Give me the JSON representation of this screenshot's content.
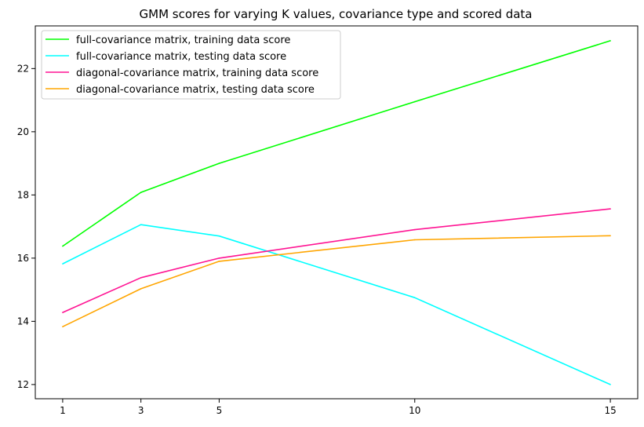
{
  "chart_data": {
    "type": "line",
    "title": "GMM scores for varying K values, covariance type and scored data",
    "xlabel": "",
    "ylabel": "",
    "x": [
      1,
      3,
      5,
      10,
      15
    ],
    "xticks": [
      1,
      3,
      5,
      10,
      15
    ],
    "yticks": [
      12,
      14,
      16,
      18,
      20,
      22
    ],
    "xlim": [
      0.3,
      15.7
    ],
    "ylim": [
      11.55,
      23.35
    ],
    "grid": false,
    "legend_position": "top-left",
    "series": [
      {
        "name": "full-covariance matrix, training data score",
        "color": "#00ff00",
        "values": [
          16.38,
          18.08,
          19.0,
          20.95,
          22.88
        ]
      },
      {
        "name": "full-covariance matrix, testing data score",
        "color": "#00ffff",
        "values": [
          15.82,
          17.06,
          16.7,
          14.75,
          12.0
        ]
      },
      {
        "name": "diagonal-covariance matrix, training data score",
        "color": "#ff1493",
        "values": [
          14.28,
          15.38,
          16.0,
          16.9,
          17.56
        ]
      },
      {
        "name": "diagonal-covariance matrix, testing data score",
        "color": "#ffa500",
        "values": [
          13.83,
          15.03,
          15.9,
          16.58,
          16.71
        ]
      }
    ]
  }
}
